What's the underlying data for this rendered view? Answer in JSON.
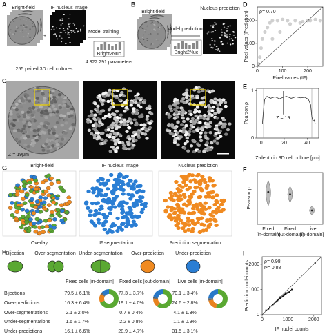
{
  "panels": {
    "A": {
      "letter": "A",
      "bright_field": "Bright-field",
      "if_image": "IF nucleus image",
      "plus": "+",
      "model_label": "Model training",
      "model_name": "Bright2Nuc",
      "parameters": "4 322 291 parameters",
      "caption": "255 paired 3D cell cultures"
    },
    "B": {
      "letter": "B",
      "bright_field": "Bright-field",
      "model_label": "Model prediction",
      "model_name": "Bright2Nuc",
      "output": "Nucleus prediction"
    },
    "C": {
      "letter": "C",
      "z_label": "Z = 19μm",
      "labels": [
        "Bright-field",
        "IF nucleus image",
        "Nucleus prediction"
      ]
    },
    "G": {
      "letter": "G",
      "labels": [
        "Overlay",
        "IF segmentation",
        "Prediction segmentation"
      ]
    },
    "H": {
      "letter": "H",
      "icon_labels": [
        "Bijection",
        "Over-segmentation",
        "Under-segmentation",
        "Over-prediction",
        "Under-prediction"
      ],
      "columns": [
        "Fixed cells [in-domain]",
        "Fixed cells [out-domain]",
        "Live cells [in-domain]"
      ],
      "rows": [
        {
          "label": "Bijections",
          "color": "#5aa832",
          "cells": [
            {
              "value": 79.5,
              "error": 6.1,
              "label": "79.5 ± 6.1%"
            },
            {
              "value": 77.3,
              "error": 3.7,
              "label": "77.3 ± 3.7%"
            },
            {
              "value": 70.1,
              "error": 3.4,
              "label": "70.1 ± 3.4%"
            }
          ]
        },
        {
          "label": "Over-predictions",
          "color": "#e8821e",
          "cells": [
            {
              "value": 16.3,
              "error": 6.4,
              "label": "16.3 ± 6.4%"
            },
            {
              "value": 19.1,
              "error": 4.0,
              "label": "19.1 ± 4.0%"
            },
            {
              "value": 24.6,
              "error": 2.8,
              "label": "24.6 ± 2.8%"
            }
          ]
        },
        {
          "label": "Over-segmentations",
          "color": "#666666",
          "cells": [
            {
              "value": 2.1,
              "error": 2.0,
              "label": "2.1 ± 2.0%"
            },
            {
              "value": 0.7,
              "error": 0.4,
              "label": "0.7 ± 0.4%"
            },
            {
              "value": 4.1,
              "error": 1.3,
              "label": "4.1 ± 1.3%"
            }
          ]
        },
        {
          "label": "Under-segmentations",
          "color": "#555555",
          "cells": [
            {
              "value": 1.6,
              "error": 1.7,
              "label": "1.6 ± 1.7%"
            },
            {
              "value": 2.2,
              "error": 0.8,
              "label": "2.2 ± 0.8%"
            },
            {
              "value": 1.1,
              "error": 0.9,
              "label": "1.1 ± 0.9%"
            }
          ]
        },
        {
          "label": "Under-predictions",
          "color": "#2878c8",
          "cells": [
            {
              "value": 16.1,
              "error": 6.6,
              "label": "16.1 ± 6.6%"
            },
            {
              "value": 28.9,
              "error": 4.7,
              "label": "28.9 ± 4.7%"
            },
            {
              "value": 31.5,
              "error": 3.1,
              "label": "31.5 ± 3.1%"
            }
          ]
        }
      ]
    }
  },
  "chart_data": [
    {
      "type": "scatter",
      "letter": "D",
      "annotation": "ρ= 0.70",
      "x_label": "Pixel values (IF)",
      "y_label": "Pixel values (Prediction)",
      "xlim": [
        0,
        260
      ],
      "ylim": [
        0,
        260
      ],
      "xticks": [
        0,
        100,
        200
      ],
      "yticks": [
        0,
        100,
        200
      ],
      "x": [
        5,
        10,
        15,
        20,
        30,
        40,
        50,
        60,
        80,
        100,
        120,
        150,
        180,
        200,
        230,
        250,
        60,
        90,
        130,
        170,
        210
      ],
      "y": [
        10,
        40,
        80,
        120,
        150,
        170,
        190,
        200,
        200,
        205,
        200,
        200,
        195,
        200,
        205,
        200,
        120,
        150,
        185,
        190,
        200
      ],
      "color": "#777777"
    },
    {
      "type": "line",
      "letter": "E",
      "x_label": "Z-depth in 3D cell culture [μm]",
      "y_label": "Pearson ρ",
      "xlim": [
        -4,
        50
      ],
      "ylim": [
        0,
        1.05
      ],
      "xticks": [
        0,
        20,
        40
      ],
      "yticks": [
        0,
        1
      ],
      "x": [
        1,
        2,
        3,
        5,
        8,
        12,
        16,
        19,
        22,
        26,
        30,
        34,
        38,
        41,
        43,
        44,
        45,
        46,
        47
      ],
      "values": [
        0.3,
        0.6,
        0.82,
        0.88,
        0.84,
        0.87,
        0.83,
        0.86,
        0.88,
        0.84,
        0.87,
        0.85,
        0.86,
        0.82,
        0.7,
        0.45,
        0.35,
        0.38,
        0.3
      ],
      "color": "#333333",
      "range_lines": [
        2,
        44
      ],
      "marker": {
        "value": 19,
        "label": "Z = 19"
      }
    },
    {
      "type": "violin",
      "letter": "F",
      "y_label": "Pearson ρ",
      "ylim": [
        0.5,
        0.95
      ],
      "categories": [
        [
          "Fixed",
          "[in-domain]"
        ],
        [
          "Fixed",
          "[out-domain]"
        ],
        [
          "Live",
          "[in-domain]"
        ]
      ],
      "median": [
        0.78,
        0.76,
        0.62
      ],
      "min": [
        0.66,
        0.69,
        0.58
      ],
      "max": [
        0.88,
        0.83,
        0.66
      ],
      "color": "#bbbbbb"
    },
    {
      "type": "scatter",
      "letter": "I",
      "annotations": [
        "ρ= 0.98",
        "r²= 0.88"
      ],
      "x_label": "IF nuclei counts",
      "y_label": "Prediction nuclei counts",
      "xlim": [
        0,
        2300
      ],
      "ylim": [
        0,
        2300
      ],
      "xticks": [
        0,
        1000,
        2000
      ],
      "yticks": [
        0,
        1000,
        2000
      ],
      "x": [
        150,
        250,
        300,
        380,
        420,
        480,
        520,
        560,
        600,
        640,
        680,
        720,
        760,
        800,
        840,
        880,
        920,
        960,
        1000,
        1050,
        1100,
        1150,
        700,
        900,
        2050
      ],
      "y": [
        180,
        230,
        300,
        350,
        400,
        430,
        500,
        520,
        560,
        600,
        640,
        650,
        700,
        730,
        760,
        800,
        820,
        860,
        880,
        900,
        960,
        1000,
        700,
        830,
        2050
      ],
      "color": "#111111"
    }
  ]
}
